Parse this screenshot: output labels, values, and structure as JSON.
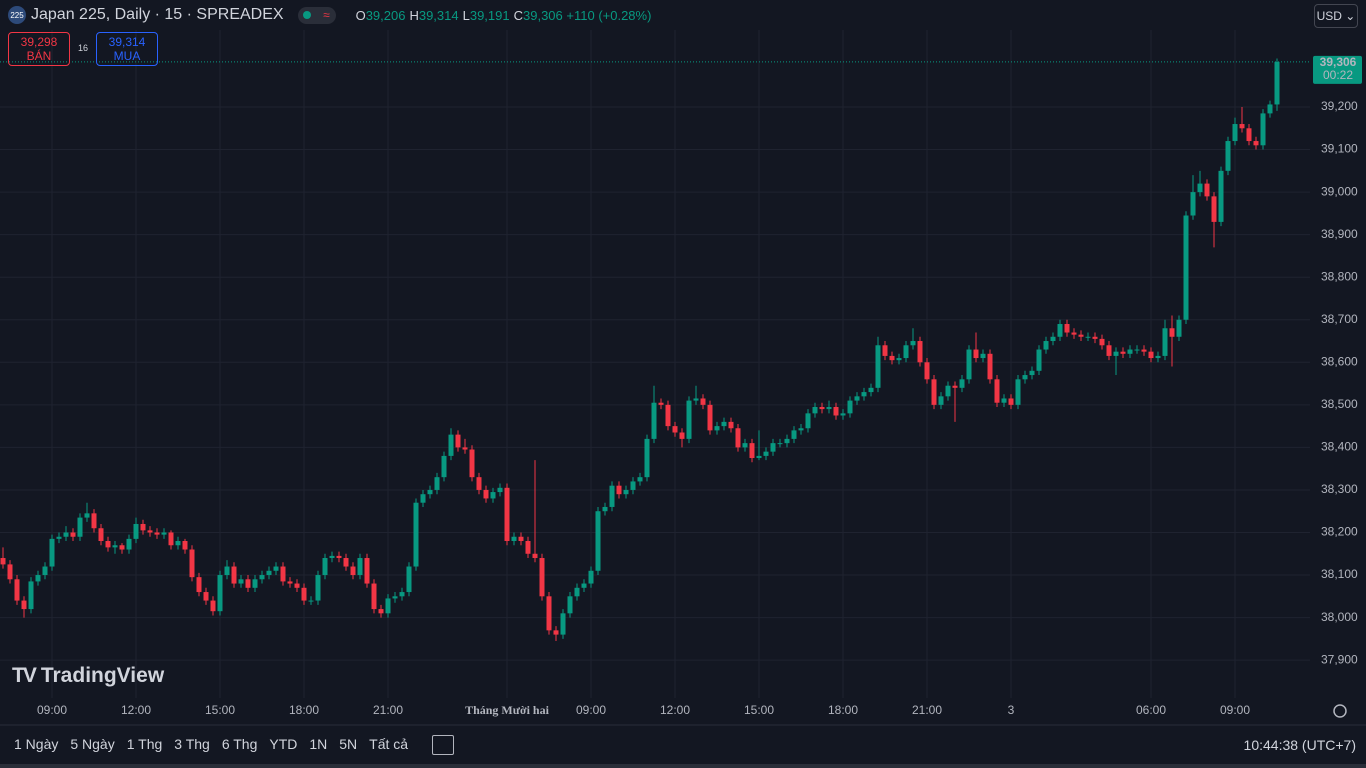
{
  "header": {
    "icon": "225",
    "title": "Japan 225, Daily · 15 · SPREADEX",
    "o_key": "O",
    "o": "39,206",
    "h_key": "H",
    "h": "39,314",
    "l_key": "L",
    "l": "39,191",
    "c_key": "C",
    "c": "39,306",
    "change": "+110 (+0.28%)",
    "currency": "USD"
  },
  "trade": {
    "sell_price": "39,298",
    "sell_label": "BÁN",
    "spread": "16",
    "buy_price": "39,314",
    "buy_label": "MUA"
  },
  "price_tag": {
    "price": "39,306",
    "countdown": "00:22"
  },
  "logo": "TradingView",
  "toolbar": {
    "ranges": [
      "1 Ngày",
      "5 Ngày",
      "1 Thg",
      "3 Thg",
      "6 Thg",
      "YTD",
      "1N",
      "5N",
      "Tất cả"
    ],
    "clock": "10:44:38 (UTC+7)"
  },
  "chart_data": {
    "type": "candlestick",
    "up_color": "#089981",
    "down_color": "#f23645",
    "grid": true,
    "ylim": [
      37811,
      39381
    ],
    "yticks": [
      {
        "value": 37900,
        "label": "37,900"
      },
      {
        "value": 38000,
        "label": "38,000"
      },
      {
        "value": 38100,
        "label": "38,100"
      },
      {
        "value": 38200,
        "label": "38,200"
      },
      {
        "value": 38300,
        "label": "38,300"
      },
      {
        "value": 38400,
        "label": "38,400"
      },
      {
        "value": 38500,
        "label": "38,500"
      },
      {
        "value": 38600,
        "label": "38,600"
      },
      {
        "value": 38700,
        "label": "38,700"
      },
      {
        "value": 38800,
        "label": "38,800"
      },
      {
        "value": 38900,
        "label": "38,900"
      },
      {
        "value": 39000,
        "label": "39,000"
      },
      {
        "value": 39100,
        "label": "39,100"
      },
      {
        "value": 39200,
        "label": "39,200"
      }
    ],
    "categories": [
      null,
      null,
      null,
      null,
      null,
      null,
      null,
      "09:00",
      null,
      null,
      null,
      null,
      null,
      null,
      null,
      null,
      null,
      null,
      null,
      "12:00",
      null,
      null,
      null,
      null,
      null,
      null,
      null,
      null,
      null,
      null,
      null,
      "15:00",
      null,
      null,
      null,
      null,
      null,
      null,
      null,
      null,
      null,
      null,
      null,
      "18:00",
      null,
      null,
      null,
      null,
      null,
      null,
      null,
      null,
      null,
      null,
      null,
      "21:00",
      null,
      null,
      null,
      null,
      null,
      null,
      null,
      null,
      null,
      null,
      null,
      null,
      null,
      null,
      null,
      null,
      "Tháng Mười hai",
      null,
      null,
      null,
      null,
      null,
      null,
      null,
      null,
      null,
      null,
      null,
      "09:00",
      null,
      null,
      null,
      null,
      null,
      null,
      null,
      null,
      null,
      null,
      null,
      "12:00",
      null,
      null,
      null,
      null,
      null,
      null,
      null,
      null,
      null,
      null,
      null,
      "15:00",
      null,
      null,
      null,
      null,
      null,
      null,
      null,
      null,
      null,
      null,
      null,
      "18:00",
      null,
      null,
      null,
      null,
      null,
      null,
      null,
      null,
      null,
      null,
      null,
      "21:00",
      null,
      null,
      null,
      null,
      null,
      null,
      null,
      null,
      null,
      null,
      null,
      "3",
      null,
      null,
      null,
      null,
      null,
      null,
      null,
      null,
      null,
      null,
      null,
      null,
      null,
      null,
      null,
      null,
      null,
      null,
      null,
      "06:00",
      null,
      null,
      null,
      null,
      null,
      null,
      null,
      null,
      null,
      null,
      null,
      "09:00",
      null,
      null,
      null,
      null,
      null,
      null
    ],
    "ohlc": [
      [
        38140,
        38165,
        38115,
        38125
      ],
      [
        38125,
        38135,
        38080,
        38090
      ],
      [
        38090,
        38100,
        38030,
        38040
      ],
      [
        38040,
        38050,
        38000,
        38020
      ],
      [
        38020,
        38095,
        38010,
        38085
      ],
      [
        38085,
        38110,
        38075,
        38100
      ],
      [
        38100,
        38130,
        38090,
        38120
      ],
      [
        38120,
        38195,
        38110,
        38185
      ],
      [
        38185,
        38200,
        38175,
        38190
      ],
      [
        38190,
        38215,
        38180,
        38200
      ],
      [
        38200,
        38210,
        38180,
        38190
      ],
      [
        38190,
        38245,
        38180,
        38235
      ],
      [
        38235,
        38270,
        38225,
        38245
      ],
      [
        38245,
        38255,
        38200,
        38210
      ],
      [
        38210,
        38220,
        38170,
        38180
      ],
      [
        38180,
        38190,
        38155,
        38165
      ],
      [
        38165,
        38180,
        38150,
        38170
      ],
      [
        38170,
        38175,
        38150,
        38160
      ],
      [
        38160,
        38195,
        38150,
        38185
      ],
      [
        38185,
        38235,
        38175,
        38220
      ],
      [
        38220,
        38230,
        38195,
        38205
      ],
      [
        38205,
        38215,
        38190,
        38200
      ],
      [
        38200,
        38210,
        38185,
        38195
      ],
      [
        38195,
        38210,
        38185,
        38200
      ],
      [
        38200,
        38205,
        38160,
        38170
      ],
      [
        38170,
        38190,
        38160,
        38180
      ],
      [
        38180,
        38185,
        38150,
        38160
      ],
      [
        38160,
        38170,
        38085,
        38095
      ],
      [
        38095,
        38105,
        38050,
        38060
      ],
      [
        38060,
        38070,
        38030,
        38040
      ],
      [
        38040,
        38050,
        38005,
        38015
      ],
      [
        38015,
        38110,
        38005,
        38100
      ],
      [
        38100,
        38135,
        38090,
        38120
      ],
      [
        38120,
        38130,
        38070,
        38080
      ],
      [
        38080,
        38100,
        38070,
        38090
      ],
      [
        38090,
        38100,
        38060,
        38070
      ],
      [
        38070,
        38100,
        38060,
        38090
      ],
      [
        38090,
        38110,
        38080,
        38100
      ],
      [
        38100,
        38120,
        38090,
        38110
      ],
      [
        38110,
        38130,
        38100,
        38120
      ],
      [
        38120,
        38130,
        38075,
        38085
      ],
      [
        38085,
        38095,
        38070,
        38080
      ],
      [
        38080,
        38090,
        38060,
        38070
      ],
      [
        38070,
        38080,
        38030,
        38040
      ],
      [
        38040,
        38050,
        38030,
        38040
      ],
      [
        38040,
        38110,
        38030,
        38100
      ],
      [
        38100,
        38150,
        38090,
        38140
      ],
      [
        38140,
        38155,
        38130,
        38145
      ],
      [
        38145,
        38155,
        38130,
        38140
      ],
      [
        38140,
        38150,
        38110,
        38120
      ],
      [
        38120,
        38130,
        38090,
        38100
      ],
      [
        38100,
        38150,
        38090,
        38140
      ],
      [
        38140,
        38150,
        38070,
        38080
      ],
      [
        38080,
        38090,
        38010,
        38020
      ],
      [
        38020,
        38030,
        38000,
        38010
      ],
      [
        38010,
        38055,
        38000,
        38045
      ],
      [
        38045,
        38060,
        38035,
        38050
      ],
      [
        38050,
        38070,
        38040,
        38060
      ],
      [
        38060,
        38130,
        38050,
        38120
      ],
      [
        38120,
        38280,
        38110,
        38270
      ],
      [
        38270,
        38300,
        38260,
        38290
      ],
      [
        38290,
        38310,
        38280,
        38300
      ],
      [
        38300,
        38340,
        38290,
        38330
      ],
      [
        38330,
        38390,
        38320,
        38380
      ],
      [
        38380,
        38445,
        38370,
        38430
      ],
      [
        38430,
        38440,
        38390,
        38400
      ],
      [
        38400,
        38420,
        38385,
        38395
      ],
      [
        38395,
        38405,
        38320,
        38330
      ],
      [
        38330,
        38340,
        38290,
        38300
      ],
      [
        38300,
        38310,
        38270,
        38280
      ],
      [
        38280,
        38305,
        38270,
        38295
      ],
      [
        38295,
        38315,
        38285,
        38305
      ],
      [
        38305,
        38315,
        38170,
        38180
      ],
      [
        38180,
        38200,
        38170,
        38190
      ],
      [
        38190,
        38200,
        38170,
        38180
      ],
      [
        38180,
        38190,
        38140,
        38150
      ],
      [
        38150,
        38370,
        38130,
        38140
      ],
      [
        38140,
        38150,
        38040,
        38050
      ],
      [
        38050,
        38060,
        37960,
        37970
      ],
      [
        37970,
        37980,
        37945,
        37960
      ],
      [
        37960,
        38020,
        37950,
        38010
      ],
      [
        38010,
        38060,
        38000,
        38050
      ],
      [
        38050,
        38080,
        38040,
        38070
      ],
      [
        38070,
        38090,
        38060,
        38080
      ],
      [
        38080,
        38120,
        38070,
        38110
      ],
      [
        38110,
        38260,
        38100,
        38250
      ],
      [
        38250,
        38270,
        38240,
        38260
      ],
      [
        38260,
        38320,
        38250,
        38310
      ],
      [
        38310,
        38320,
        38280,
        38290
      ],
      [
        38290,
        38310,
        38280,
        38300
      ],
      [
        38300,
        38330,
        38290,
        38320
      ],
      [
        38320,
        38340,
        38310,
        38330
      ],
      [
        38330,
        38430,
        38320,
        38420
      ],
      [
        38420,
        38545,
        38410,
        38505
      ],
      [
        38505,
        38515,
        38490,
        38500
      ],
      [
        38500,
        38510,
        38440,
        38450
      ],
      [
        38450,
        38460,
        38425,
        38435
      ],
      [
        38435,
        38445,
        38400,
        38420
      ],
      [
        38420,
        38520,
        38410,
        38510
      ],
      [
        38510,
        38545,
        38500,
        38515
      ],
      [
        38515,
        38525,
        38490,
        38500
      ],
      [
        38500,
        38510,
        38430,
        38440
      ],
      [
        38440,
        38460,
        38430,
        38450
      ],
      [
        38450,
        38470,
        38440,
        38460
      ],
      [
        38460,
        38470,
        38435,
        38445
      ],
      [
        38445,
        38455,
        38390,
        38400
      ],
      [
        38400,
        38420,
        38390,
        38410
      ],
      [
        38410,
        38420,
        38365,
        38375
      ],
      [
        38375,
        38440,
        38370,
        38380
      ],
      [
        38380,
        38400,
        38370,
        38390
      ],
      [
        38390,
        38420,
        38380,
        38410
      ],
      [
        38410,
        38420,
        38400,
        38410
      ],
      [
        38410,
        38430,
        38400,
        38420
      ],
      [
        38420,
        38450,
        38410,
        38440
      ],
      [
        38440,
        38455,
        38430,
        38445
      ],
      [
        38445,
        38490,
        38435,
        38480
      ],
      [
        38480,
        38505,
        38470,
        38495
      ],
      [
        38495,
        38505,
        38480,
        38490
      ],
      [
        38490,
        38510,
        38480,
        38495
      ],
      [
        38495,
        38505,
        38465,
        38475
      ],
      [
        38475,
        38490,
        38465,
        38480
      ],
      [
        38480,
        38520,
        38470,
        38510
      ],
      [
        38510,
        38530,
        38500,
        38520
      ],
      [
        38520,
        38540,
        38510,
        38530
      ],
      [
        38530,
        38550,
        38520,
        38540
      ],
      [
        38540,
        38660,
        38530,
        38640
      ],
      [
        38640,
        38650,
        38605,
        38615
      ],
      [
        38615,
        38625,
        38595,
        38605
      ],
      [
        38605,
        38620,
        38595,
        38610
      ],
      [
        38610,
        38650,
        38600,
        38640
      ],
      [
        38640,
        38680,
        38630,
        38650
      ],
      [
        38650,
        38660,
        38590,
        38600
      ],
      [
        38600,
        38610,
        38550,
        38560
      ],
      [
        38560,
        38570,
        38490,
        38500
      ],
      [
        38500,
        38530,
        38490,
        38520
      ],
      [
        38520,
        38555,
        38510,
        38545
      ],
      [
        38545,
        38555,
        38460,
        38540
      ],
      [
        38540,
        38570,
        38530,
        38560
      ],
      [
        38560,
        38640,
        38550,
        38630
      ],
      [
        38630,
        38670,
        38600,
        38610
      ],
      [
        38610,
        38630,
        38600,
        38620
      ],
      [
        38620,
        38630,
        38550,
        38560
      ],
      [
        38560,
        38570,
        38495,
        38505
      ],
      [
        38505,
        38525,
        38495,
        38515
      ],
      [
        38515,
        38525,
        38490,
        38500
      ],
      [
        38500,
        38570,
        38490,
        38560
      ],
      [
        38560,
        38580,
        38550,
        38570
      ],
      [
        38570,
        38590,
        38560,
        38580
      ],
      [
        38580,
        38640,
        38570,
        38630
      ],
      [
        38630,
        38660,
        38620,
        38650
      ],
      [
        38650,
        38670,
        38640,
        38660
      ],
      [
        38660,
        38700,
        38650,
        38690
      ],
      [
        38690,
        38700,
        38660,
        38670
      ],
      [
        38670,
        38680,
        38655,
        38665
      ],
      [
        38665,
        38675,
        38650,
        38660
      ],
      [
        38660,
        38670,
        38650,
        38660
      ],
      [
        38660,
        38670,
        38645,
        38655
      ],
      [
        38655,
        38665,
        38630,
        38640
      ],
      [
        38640,
        38650,
        38605,
        38615
      ],
      [
        38615,
        38635,
        38570,
        38625
      ],
      [
        38625,
        38635,
        38610,
        38620
      ],
      [
        38620,
        38640,
        38610,
        38630
      ],
      [
        38630,
        38640,
        38620,
        38630
      ],
      [
        38630,
        38640,
        38615,
        38625
      ],
      [
        38625,
        38635,
        38600,
        38610
      ],
      [
        38610,
        38625,
        38600,
        38615
      ],
      [
        38615,
        38700,
        38605,
        38680
      ],
      [
        38680,
        38710,
        38590,
        38660
      ],
      [
        38660,
        38710,
        38650,
        38700
      ],
      [
        38700,
        38955,
        38690,
        38945
      ],
      [
        38945,
        39040,
        38935,
        39000
      ],
      [
        39000,
        39050,
        38990,
        39020
      ],
      [
        39020,
        39030,
        38980,
        38990
      ],
      [
        38990,
        39000,
        38870,
        38930
      ],
      [
        38930,
        39060,
        38920,
        39050
      ],
      [
        39050,
        39130,
        39040,
        39120
      ],
      [
        39120,
        39175,
        39110,
        39160
      ],
      [
        39160,
        39200,
        39140,
        39150
      ],
      [
        39150,
        39160,
        39110,
        39120
      ],
      [
        39120,
        39130,
        39100,
        39110
      ],
      [
        39110,
        39195,
        39100,
        39185
      ],
      [
        39185,
        39215,
        39175,
        39206
      ],
      [
        39206,
        39314,
        39191,
        39306
      ]
    ]
  }
}
